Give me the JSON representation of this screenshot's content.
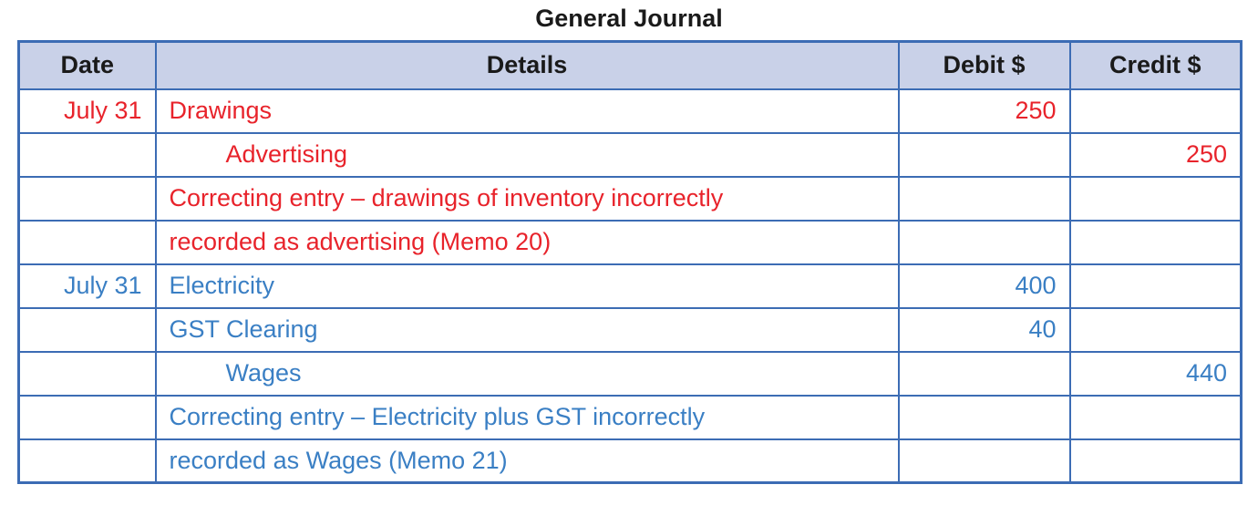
{
  "title": "General Journal",
  "columns": {
    "date": "Date",
    "details": "Details",
    "debit": "Debit $",
    "credit": "Credit $"
  },
  "colors": {
    "entry_1": "#e8232b",
    "entry_2": "#3a7fc4",
    "border": "#3c6cb4",
    "header_bg": "#c9d1e8"
  },
  "rows": [
    {
      "date": "July 31",
      "details": "Drawings",
      "debit": "250",
      "credit": "",
      "entry": 1,
      "indent": false
    },
    {
      "date": "",
      "details": "Advertising",
      "debit": "",
      "credit": "250",
      "entry": 1,
      "indent": true
    },
    {
      "date": "",
      "details": "Correcting entry – drawings of inventory incorrectly",
      "debit": "",
      "credit": "",
      "entry": 1,
      "indent": false
    },
    {
      "date": "",
      "details": "recorded as advertising (Memo 20)",
      "debit": "",
      "credit": "",
      "entry": 1,
      "indent": false
    },
    {
      "date": "July 31",
      "details": "Electricity",
      "debit": "400",
      "credit": "",
      "entry": 2,
      "indent": false
    },
    {
      "date": "",
      "details": "GST Clearing",
      "debit": "40",
      "credit": "",
      "entry": 2,
      "indent": false
    },
    {
      "date": "",
      "details": "Wages",
      "debit": "",
      "credit": "440",
      "entry": 2,
      "indent": true
    },
    {
      "date": "",
      "details": "Correcting entry – Electricity plus GST incorrectly",
      "debit": "",
      "credit": "",
      "entry": 2,
      "indent": false
    },
    {
      "date": "",
      "details": "recorded as Wages (Memo 21)",
      "debit": "",
      "credit": "",
      "entry": 2,
      "indent": false
    }
  ]
}
